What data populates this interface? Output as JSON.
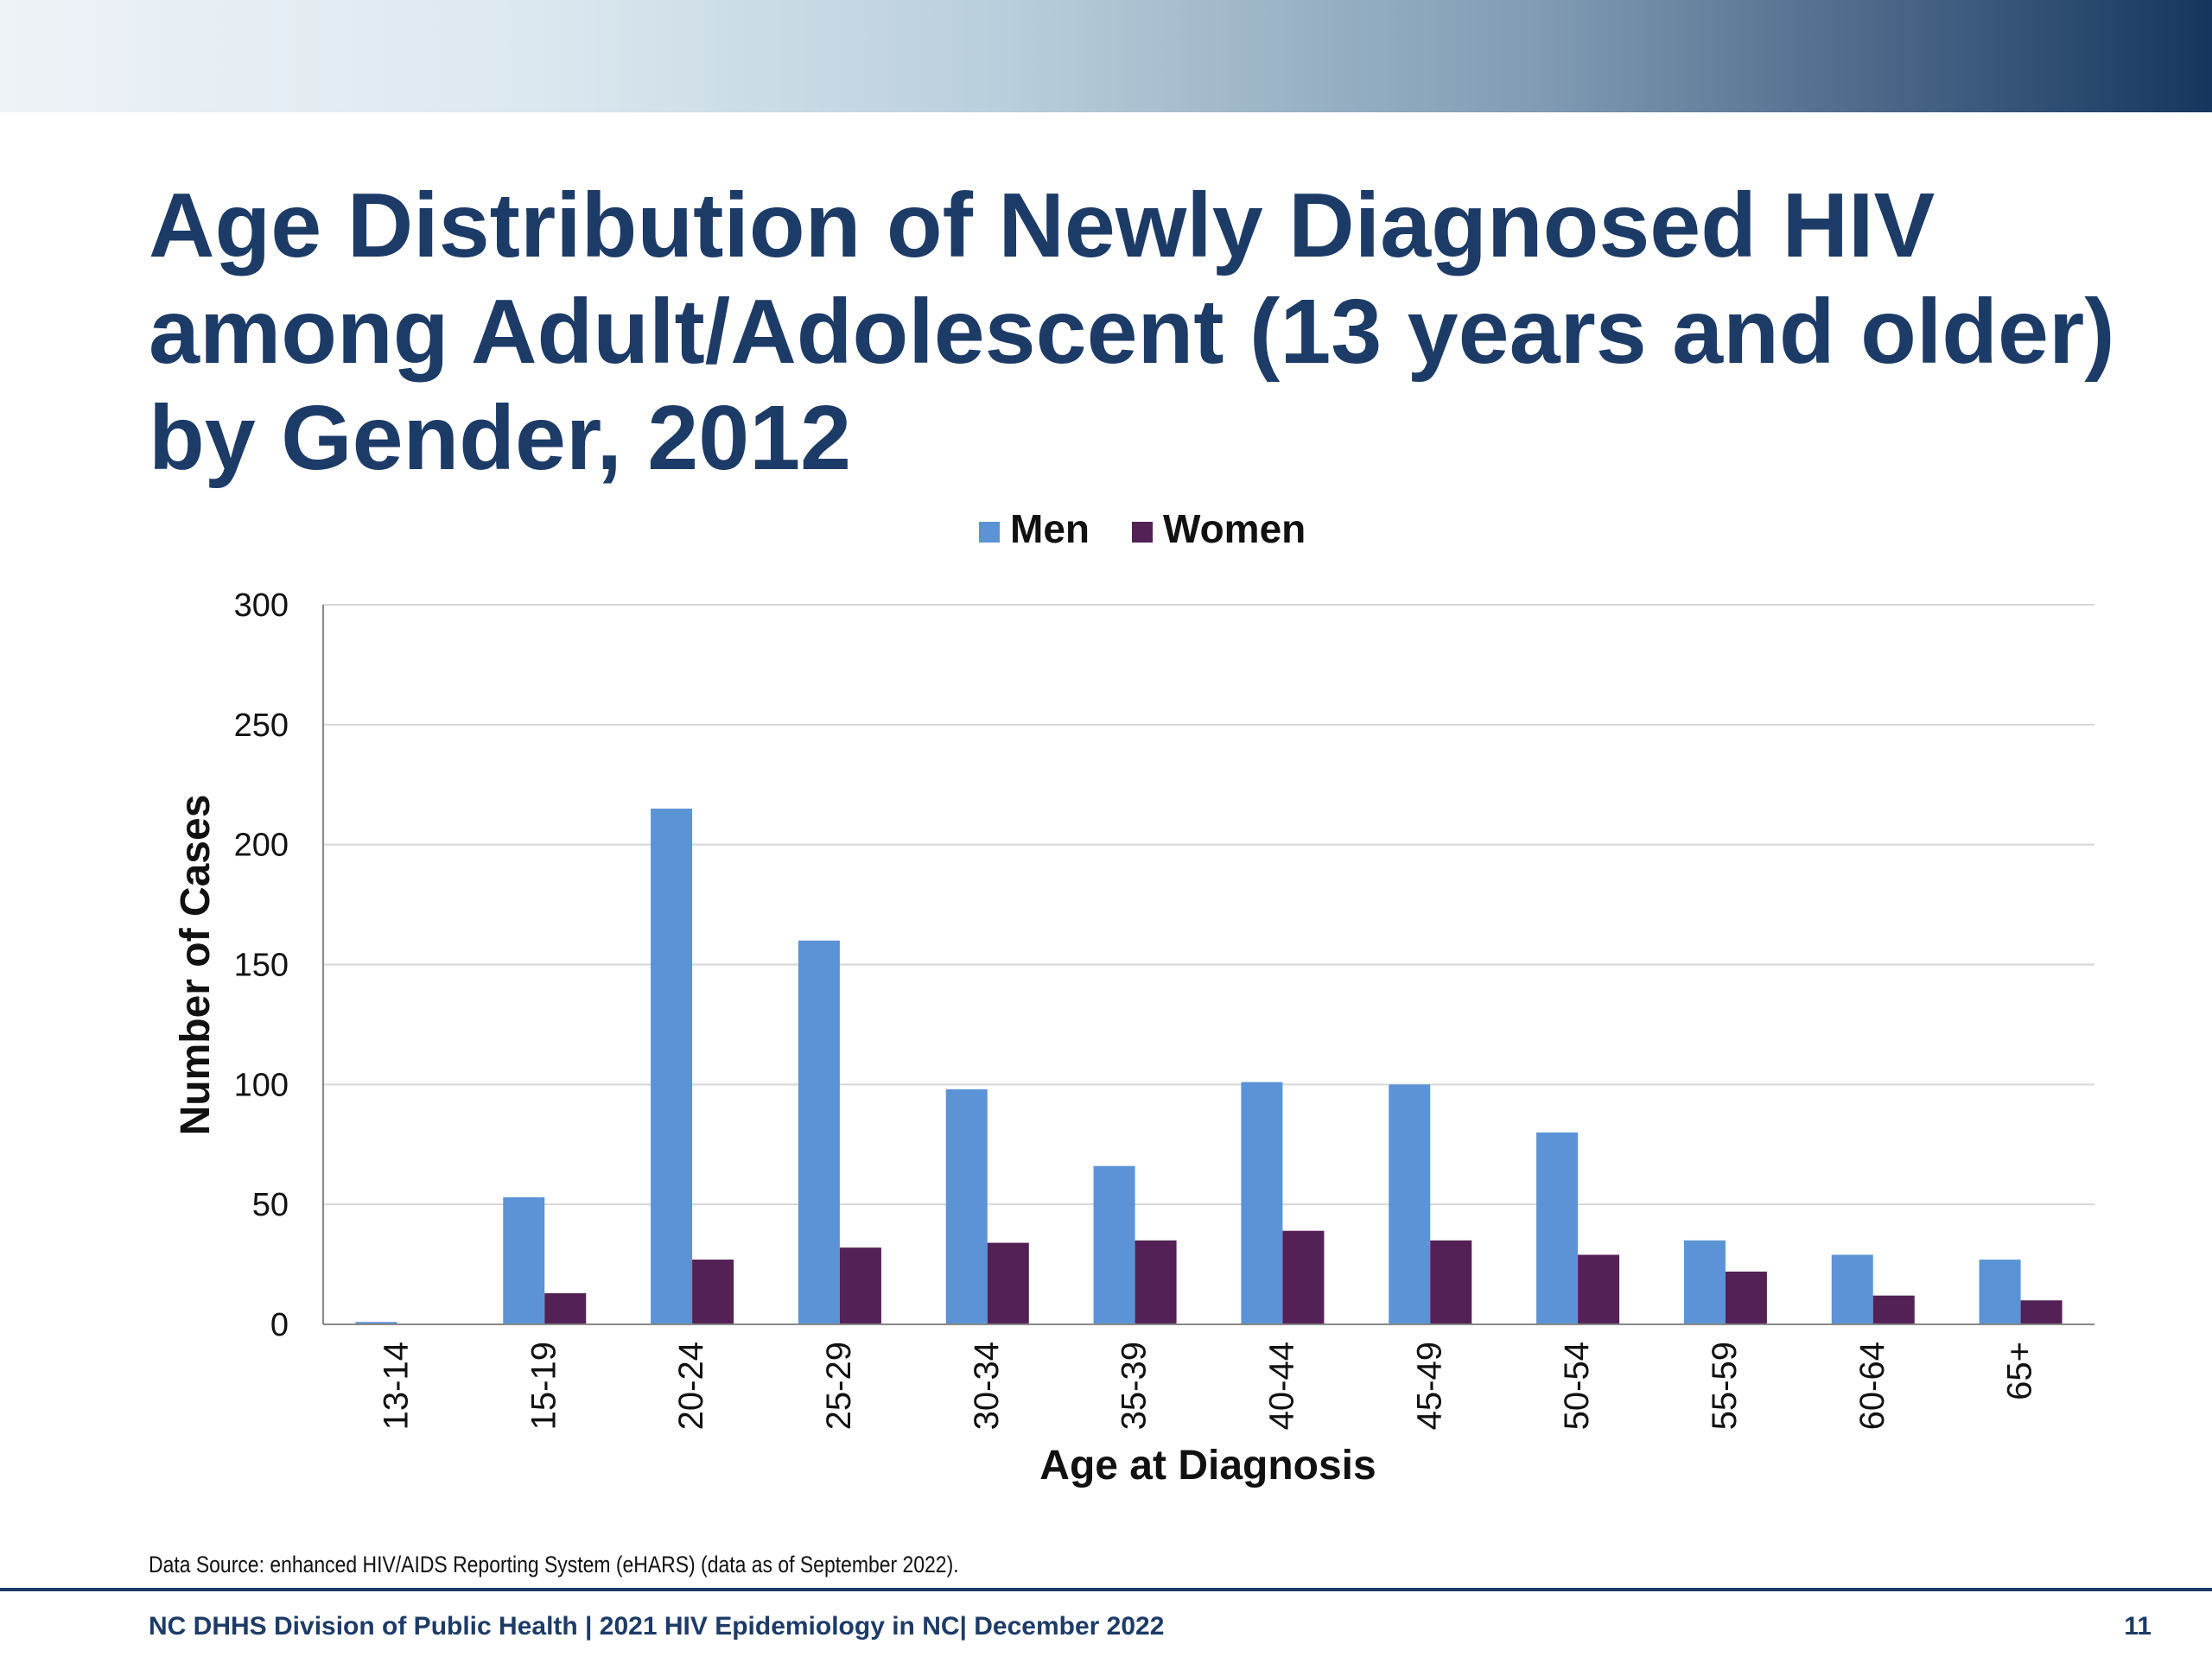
{
  "slide": {
    "title": "Age Distribution of Newly Diagnosed HIV among Adult/Adolescent (13 years and older) by Gender, 2012",
    "source": "Data Source: enhanced HIV/AIDS Reporting System (eHARS) (data as of September 2022).",
    "footer": "NC DHHS Division of Public Health | 2021 HIV Epidemiology in NC| December 2022",
    "page_number": "11"
  },
  "chart_data": {
    "type": "bar",
    "xlabel": "Age at Diagnosis",
    "ylabel": "Number of Cases",
    "categories": [
      "13-14",
      "15-19",
      "20-24",
      "25-29",
      "30-34",
      "35-39",
      "40-44",
      "45-49",
      "50-54",
      "55-59",
      "60-64",
      "65+"
    ],
    "series": [
      {
        "name": "Men",
        "color": "#5b93d6",
        "values": [
          1,
          53,
          215,
          160,
          98,
          66,
          101,
          100,
          80,
          35,
          29,
          27
        ]
      },
      {
        "name": "Women",
        "color": "#532155",
        "values": [
          0,
          13,
          27,
          32,
          34,
          35,
          39,
          35,
          29,
          22,
          12,
          10
        ]
      }
    ],
    "ylim": [
      0,
      300
    ],
    "yticks": [
      0,
      50,
      100,
      150,
      200,
      250,
      300
    ],
    "grid": true,
    "legend_position": "top-center"
  }
}
